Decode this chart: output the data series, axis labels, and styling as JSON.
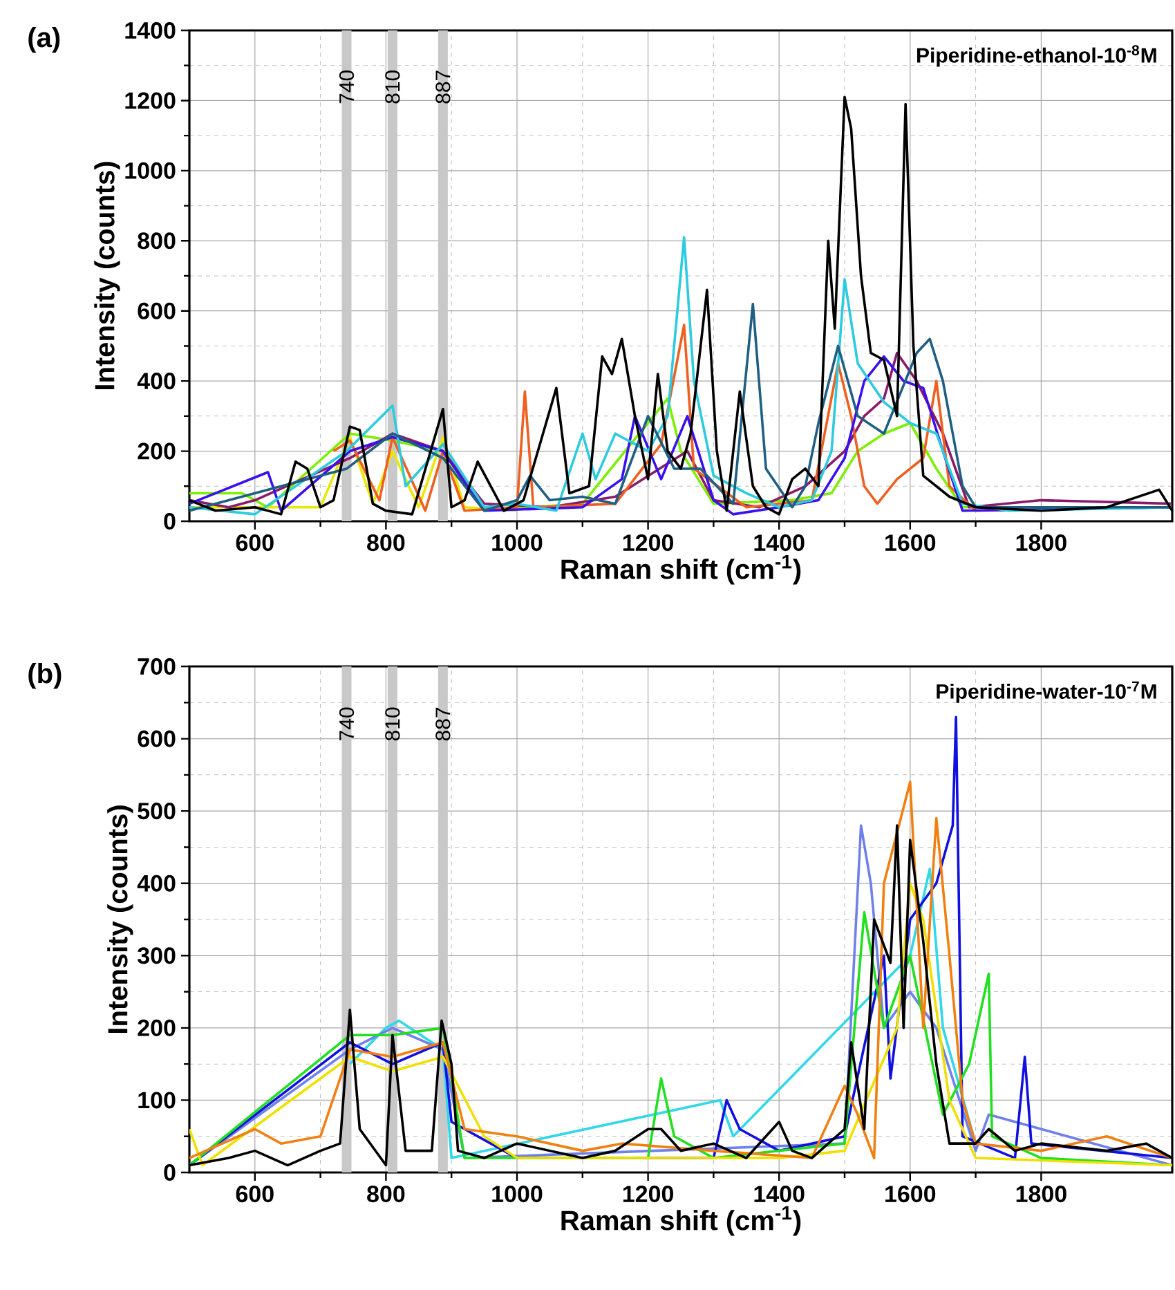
{
  "chart_data": [
    {
      "type": "line",
      "title": "(a)",
      "xlabel": "Raman shift (cm$^{-1}$)",
      "ylabel": "Intensity (counts)",
      "annotations": [
        "Piperidine-ethanol-10$^{-8}$M"
      ],
      "xlim": [
        500,
        2000
      ],
      "ylim": [
        0,
        1400
      ],
      "xticks": [
        600,
        800,
        1000,
        1200,
        1400,
        1600,
        1800
      ],
      "yticks": [
        0,
        200,
        400,
        600,
        800,
        1000,
        1200,
        1400
      ],
      "grid": true,
      "ref_lines": [
        {
          "axis": "x",
          "value": 740,
          "label": "740",
          "color": "#c8c8c8"
        },
        {
          "axis": "x",
          "value": 810,
          "label": "810",
          "color": "#c8c8c8"
        },
        {
          "axis": "x",
          "value": 887,
          "label": "887",
          "color": "#c8c8c8"
        }
      ],
      "series": [
        {
          "color": "#7cf000",
          "x": [
            500,
            580,
            620,
            745,
            810,
            887,
            950,
            1100,
            1230,
            1250,
            1300,
            1420,
            1480,
            1520,
            1560,
            1600,
            1640,
            1680,
            2000
          ],
          "values": [
            80,
            80,
            40,
            250,
            230,
            200,
            30,
            50,
            350,
            200,
            50,
            60,
            80,
            200,
            250,
            280,
            150,
            40,
            40
          ]
        },
        {
          "color": "#e8e800",
          "x": [
            500,
            700,
            745,
            780,
            810,
            850,
            887,
            920,
            1000
          ],
          "values": [
            40,
            40,
            240,
            50,
            200,
            40,
            240,
            40,
            30
          ]
        },
        {
          "color": "#8b1a6b",
          "x": [
            500,
            560,
            600,
            745,
            810,
            887,
            950,
            1050,
            1150,
            1260,
            1300,
            1370,
            1440,
            1500,
            1530,
            1560,
            1580,
            1610,
            1650,
            1690,
            1800,
            2000
          ],
          "values": [
            60,
            40,
            60,
            180,
            250,
            200,
            50,
            40,
            70,
            200,
            60,
            40,
            100,
            200,
            300,
            350,
            480,
            400,
            250,
            40,
            60,
            50
          ]
        },
        {
          "color": "#ee6020",
          "x": [
            720,
            745,
            790,
            810,
            860,
            887,
            920,
            1000,
            1012,
            1025,
            1150,
            1220,
            1255,
            1270,
            1350,
            1450,
            1490,
            1510,
            1530,
            1550,
            1580,
            1620,
            1640,
            1660,
            1700,
            2000
          ],
          "values": [
            200,
            230,
            60,
            240,
            30,
            200,
            30,
            40,
            370,
            40,
            50,
            220,
            560,
            150,
            40,
            60,
            450,
            300,
            100,
            50,
            120,
            180,
            400,
            100,
            30,
            40
          ]
        },
        {
          "color": "#3a10ee",
          "x": [
            500,
            620,
            640,
            745,
            810,
            887,
            950,
            1100,
            1160,
            1180,
            1220,
            1260,
            1300,
            1330,
            1400,
            1460,
            1500,
            1530,
            1560,
            1590,
            1620,
            1650,
            1680,
            2000
          ],
          "values": [
            50,
            140,
            30,
            200,
            240,
            200,
            30,
            40,
            120,
            300,
            120,
            300,
            60,
            20,
            40,
            60,
            180,
            400,
            470,
            400,
            380,
            200,
            30,
            40
          ]
        },
        {
          "color": "#2dcbdf",
          "x": [
            500,
            600,
            740,
            810,
            830,
            887,
            950,
            1000,
            1060,
            1100,
            1120,
            1150,
            1200,
            1230,
            1255,
            1270,
            1300,
            1350,
            1400,
            1450,
            1480,
            1500,
            1520,
            1560,
            1600,
            1640,
            1680,
            1750,
            2000
          ],
          "values": [
            40,
            20,
            200,
            330,
            100,
            220,
            40,
            50,
            30,
            250,
            120,
            250,
            200,
            300,
            810,
            400,
            130,
            80,
            40,
            60,
            200,
            690,
            450,
            340,
            280,
            250,
            50,
            30,
            40
          ]
        },
        {
          "color": "#1f5f84",
          "x": [
            500,
            740,
            810,
            887,
            950,
            1000,
            1020,
            1050,
            1100,
            1150,
            1200,
            1240,
            1280,
            1330,
            1360,
            1380,
            1420,
            1440,
            1460,
            1490,
            1520,
            1560,
            1610,
            1630,
            1650,
            1680,
            1700,
            2000
          ],
          "values": [
            30,
            150,
            250,
            180,
            30,
            60,
            130,
            60,
            70,
            50,
            300,
            150,
            150,
            50,
            620,
            150,
            40,
            100,
            280,
            500,
            300,
            250,
            480,
            520,
            400,
            100,
            40,
            40
          ]
        },
        {
          "color": "#000000",
          "x": [
            500,
            540,
            600,
            640,
            662,
            680,
            700,
            720,
            745,
            760,
            780,
            800,
            840,
            887,
            900,
            920,
            940,
            960,
            980,
            1010,
            1060,
            1080,
            1110,
            1130,
            1145,
            1160,
            1180,
            1200,
            1215,
            1230,
            1250,
            1265,
            1290,
            1305,
            1320,
            1340,
            1360,
            1380,
            1400,
            1420,
            1440,
            1460,
            1475,
            1485,
            1500,
            1510,
            1525,
            1540,
            1560,
            1580,
            1593,
            1605,
            1620,
            1640,
            1660,
            1700,
            1800,
            1900,
            1980,
            2000
          ],
          "values": [
            60,
            30,
            40,
            20,
            170,
            150,
            40,
            60,
            270,
            260,
            50,
            30,
            20,
            320,
            40,
            60,
            170,
            100,
            30,
            60,
            380,
            80,
            100,
            470,
            420,
            520,
            300,
            120,
            420,
            200,
            150,
            250,
            660,
            200,
            30,
            370,
            100,
            40,
            20,
            120,
            150,
            100,
            800,
            550,
            1210,
            1120,
            700,
            480,
            460,
            300,
            1190,
            500,
            130,
            100,
            70,
            40,
            30,
            40,
            90,
            30
          ]
        }
      ]
    },
    {
      "type": "line",
      "title": "(b)",
      "xlabel": "Raman shift (cm$^{-1}$)",
      "ylabel": "Intensity (counts)",
      "annotations": [
        "Piperidine-water-10$^{-7}$M"
      ],
      "xlim": [
        500,
        2000
      ],
      "ylim": [
        0,
        700
      ],
      "xticks": [
        600,
        800,
        1000,
        1200,
        1400,
        1600,
        1800
      ],
      "yticks": [
        0,
        100,
        200,
        300,
        400,
        500,
        600,
        700
      ],
      "grid": true,
      "ref_lines": [
        {
          "axis": "x",
          "value": 740,
          "label": "740",
          "color": "#c8c8c8"
        },
        {
          "axis": "x",
          "value": 810,
          "label": "810",
          "color": "#c8c8c8"
        },
        {
          "axis": "x",
          "value": 887,
          "label": "887",
          "color": "#c8c8c8"
        }
      ],
      "series": [
        {
          "color": "#30d8e8",
          "x": [
            745,
            800,
            820,
            887,
            900,
            1310,
            1330,
            1600,
            1630,
            1650,
            1700
          ],
          "values": [
            150,
            200,
            210,
            170,
            20,
            100,
            50,
            300,
            420,
            200,
            40
          ]
        },
        {
          "color": "#6f80ea",
          "x": [
            500,
            745,
            810,
            887,
            920,
            1500,
            1525,
            1540,
            1560,
            1600,
            1640,
            1700,
            1720,
            2000
          ],
          "values": [
            10,
            170,
            200,
            170,
            20,
            40,
            480,
            400,
            200,
            250,
            200,
            30,
            80,
            10
          ]
        },
        {
          "color": "#1010e0",
          "x": [
            500,
            745,
            810,
            887,
            900,
            1000,
            1300,
            1320,
            1340,
            1400,
            1500,
            1560,
            1570,
            1600,
            1640,
            1665,
            1670,
            1680,
            1760,
            1775,
            1785,
            2000
          ],
          "values": [
            10,
            180,
            150,
            180,
            70,
            20,
            20,
            100,
            60,
            30,
            50,
            300,
            130,
            350,
            400,
            480,
            630,
            50,
            20,
            160,
            40,
            20
          ]
        },
        {
          "color": "#20e020",
          "x": [
            500,
            745,
            810,
            887,
            920,
            1200,
            1220,
            1240,
            1300,
            1500,
            1530,
            1560,
            1600,
            1650,
            1690,
            1720,
            1725,
            1800,
            2000
          ],
          "values": [
            10,
            190,
            190,
            200,
            20,
            20,
            130,
            50,
            20,
            40,
            360,
            200,
            300,
            80,
            150,
            275,
            50,
            20,
            10
          ]
        },
        {
          "color": "#f0e000",
          "x": [
            500,
            520,
            745,
            810,
            887,
            950,
            1000,
            1400,
            1500,
            1580,
            1600,
            1620,
            1660,
            1700,
            2000
          ],
          "values": [
            60,
            10,
            160,
            140,
            160,
            50,
            20,
            20,
            30,
            200,
            400,
            350,
            100,
            20,
            10
          ]
        },
        {
          "color": "#f08010",
          "x": [
            500,
            600,
            640,
            700,
            745,
            810,
            887,
            920,
            1000,
            1100,
            1160,
            1300,
            1450,
            1500,
            1520,
            1545,
            1560,
            1600,
            1620,
            1640,
            1660,
            1680,
            1700,
            1800,
            1900,
            2000
          ],
          "values": [
            20,
            60,
            40,
            50,
            170,
            160,
            180,
            60,
            50,
            30,
            40,
            30,
            20,
            120,
            80,
            20,
            400,
            540,
            200,
            490,
            300,
            100,
            40,
            30,
            50,
            20
          ]
        },
        {
          "color": "#000000",
          "x": [
            500,
            560,
            600,
            650,
            700,
            730,
            745,
            760,
            800,
            810,
            830,
            870,
            885,
            900,
            910,
            950,
            1000,
            1100,
            1150,
            1200,
            1220,
            1250,
            1300,
            1350,
            1400,
            1420,
            1450,
            1500,
            1510,
            1530,
            1545,
            1570,
            1580,
            1590,
            1600,
            1620,
            1640,
            1660,
            1700,
            1720,
            1760,
            1800,
            1900,
            1960,
            2000
          ],
          "values": [
            10,
            20,
            30,
            10,
            30,
            40,
            225,
            60,
            10,
            190,
            30,
            30,
            210,
            150,
            30,
            20,
            40,
            20,
            30,
            60,
            60,
            30,
            40,
            20,
            70,
            30,
            20,
            60,
            180,
            60,
            350,
            290,
            480,
            200,
            460,
            320,
            150,
            40,
            40,
            60,
            30,
            40,
            30,
            40,
            20
          ]
        }
      ]
    }
  ]
}
